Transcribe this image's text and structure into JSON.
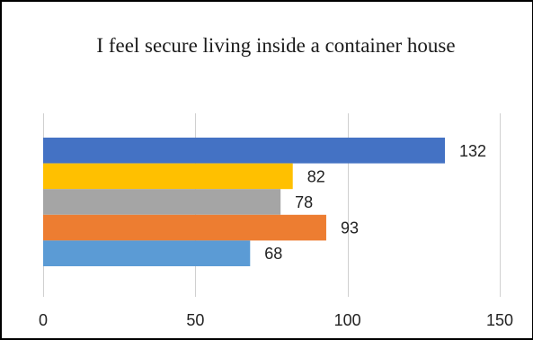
{
  "chart_data": {
    "type": "bar",
    "orientation": "horizontal",
    "title": "I feel secure living inside a container house",
    "xlabel": "",
    "ylabel": "",
    "xlim": [
      0,
      150
    ],
    "ticks": [
      0,
      50,
      100,
      150
    ],
    "grid": true,
    "legend": "none",
    "bars": [
      {
        "value": 132,
        "label": "132",
        "color": "#4472C4"
      },
      {
        "value": 82,
        "label": "82",
        "color": "#FFC000"
      },
      {
        "value": 78,
        "label": "78",
        "color": "#A5A5A5"
      },
      {
        "value": 93,
        "label": "93",
        "color": "#ED7D31"
      },
      {
        "value": 68,
        "label": "68",
        "color": "#5B9BD5"
      }
    ]
  }
}
